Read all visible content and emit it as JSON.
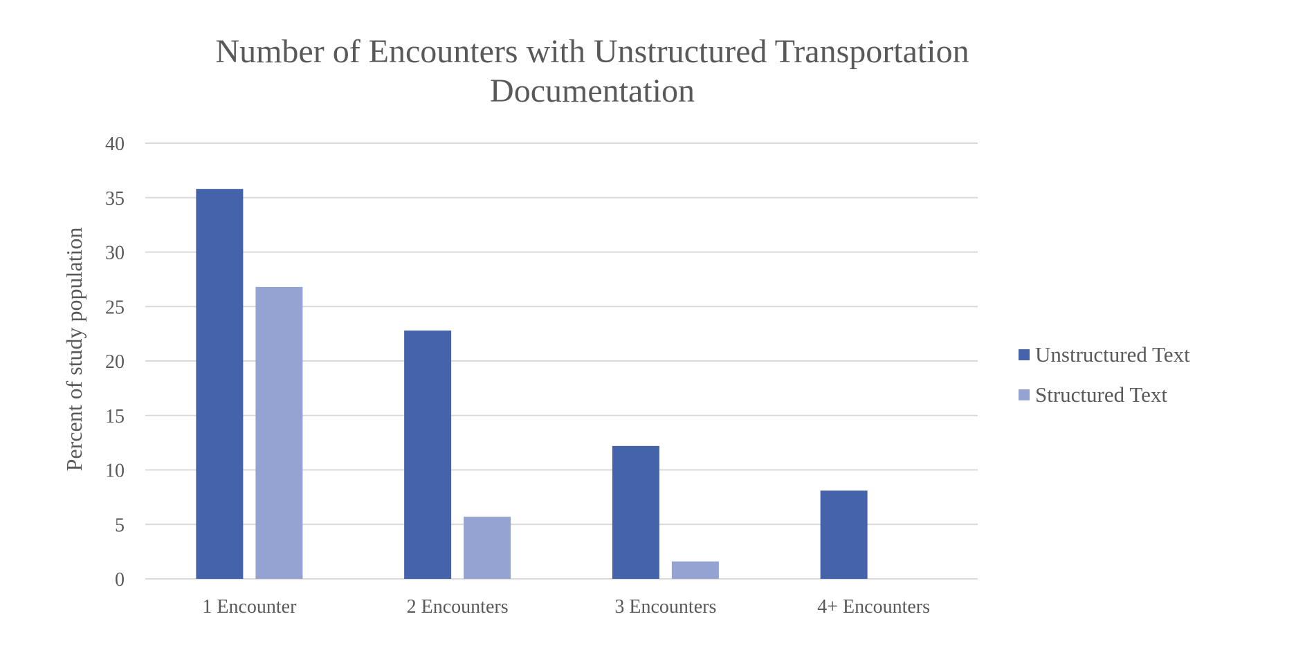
{
  "chart_data": {
    "type": "bar",
    "title_lines": [
      "Number of Encounters with Unstructured Transportation",
      "Documentation"
    ],
    "xlabel": "",
    "ylabel": "Percent of study population",
    "categories": [
      "1 Encounter",
      "2 Encounters",
      "3 Encounters",
      "4+ Encounters"
    ],
    "series": [
      {
        "name": "Unstructured Text",
        "color": "#4563AA",
        "values": [
          35.8,
          22.8,
          12.2,
          8.1
        ]
      },
      {
        "name": "Structured Text",
        "color": "#94A3D2",
        "values": [
          26.8,
          5.7,
          1.6,
          0
        ]
      }
    ],
    "ylim": [
      0,
      40
    ],
    "yticks": [
      "0",
      "5",
      "10",
      "15",
      "20",
      "25",
      "30",
      "35",
      "40"
    ],
    "grid": true,
    "legend_position": "right"
  }
}
